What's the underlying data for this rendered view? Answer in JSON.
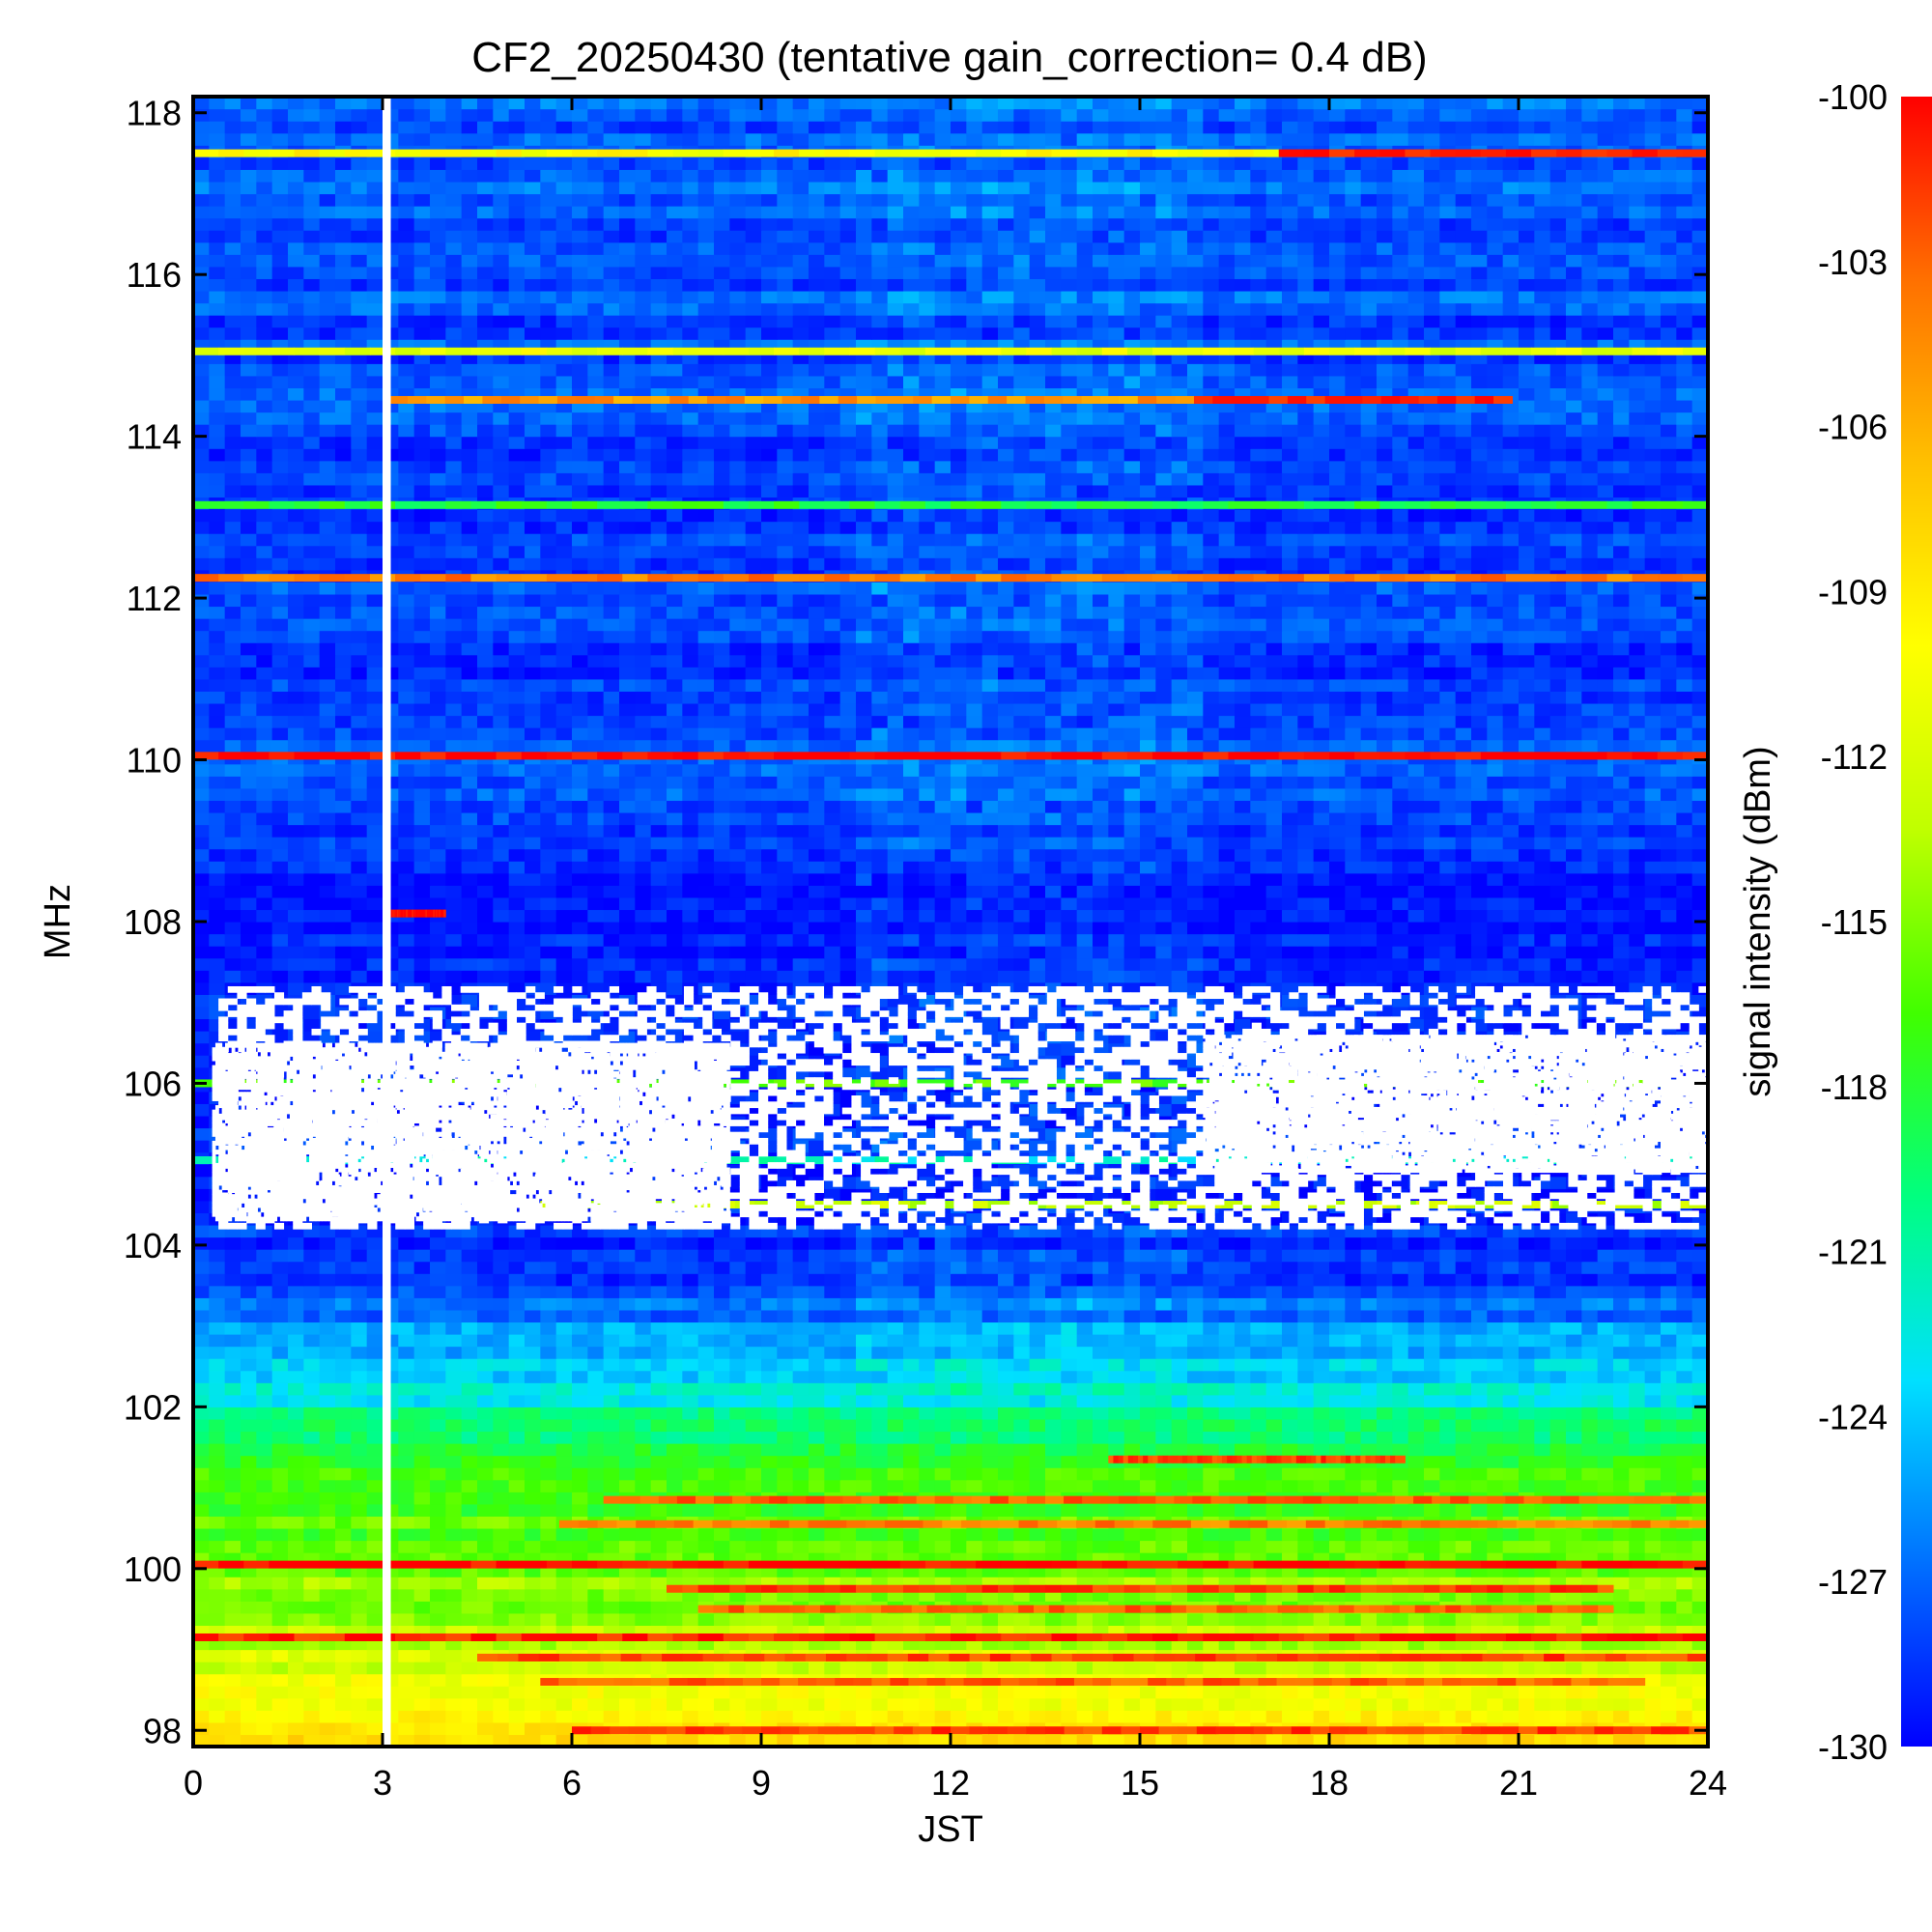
{
  "chart_data": {
    "type": "heatmap",
    "title": "CF2_20250430 (tentative gain_correction=  0.4 dB)",
    "xlabel": "JST",
    "ylabel": "MHz",
    "colorbar_label": "signal intensity (dBm)",
    "xlim": [
      0,
      24
    ],
    "ylim": [
      97.8,
      118.2
    ],
    "clim": [
      -130,
      -100
    ],
    "x_ticks": [
      0,
      3,
      6,
      9,
      12,
      15,
      18,
      21,
      24
    ],
    "x_tick_labels": [
      "0",
      "3",
      "6",
      "9",
      "12",
      "15",
      "18",
      "21",
      "24"
    ],
    "y_ticks": [
      98,
      100,
      102,
      104,
      106,
      108,
      110,
      112,
      114,
      116,
      118
    ],
    "y_tick_labels": [
      "98",
      "100",
      "102",
      "104",
      "106",
      "108",
      "110",
      "112",
      "114",
      "116",
      "118"
    ],
    "colorbar_ticks": [
      -100,
      -103,
      -106,
      -109,
      -112,
      -115,
      -118,
      -121,
      -124,
      -127,
      -130
    ],
    "colorbar_tick_labels": [
      "-100",
      "-103",
      "-106",
      "-109",
      "-112",
      "-115",
      "-118",
      "-121",
      "-124",
      "-127",
      "-130"
    ],
    "colormap": [
      "#0000ff",
      "#0070ff",
      "#00e0ff",
      "#00ff80",
      "#40ff00",
      "#c0ff00",
      "#ffff00",
      "#ffc000",
      "#ff7000",
      "#ff0000"
    ],
    "background_gradient": [
      {
        "freq": 97.8,
        "dbm": -109
      },
      {
        "freq": 98.5,
        "dbm": -111
      },
      {
        "freq": 99.3,
        "dbm": -114
      },
      {
        "freq": 100.5,
        "dbm": -116
      },
      {
        "freq": 101.5,
        "dbm": -118
      },
      {
        "freq": 102.2,
        "dbm": -123
      },
      {
        "freq": 103.0,
        "dbm": -126
      },
      {
        "freq": 104.0,
        "dbm": -129
      },
      {
        "freq": 108.0,
        "dbm": -129
      },
      {
        "freq": 110.0,
        "dbm": -128
      },
      {
        "freq": 114.0,
        "dbm": -128
      },
      {
        "freq": 118.2,
        "dbm": -127
      }
    ],
    "lines": [
      {
        "freq": 117.5,
        "t_start": 0,
        "t_end": 24,
        "dbm": -110,
        "peak_dbm": -101
      },
      {
        "freq": 115.05,
        "t_start": 0,
        "t_end": 24,
        "dbm": -111
      },
      {
        "freq": 114.45,
        "t_start": 3.1,
        "t_end": 20.9,
        "dbm": -105,
        "peak_dbm": -101
      },
      {
        "freq": 113.15,
        "t_start": 0,
        "t_end": 24,
        "dbm": -118
      },
      {
        "freq": 112.25,
        "t_start": 0,
        "t_end": 24,
        "dbm": -104
      },
      {
        "freq": 110.05,
        "t_start": 0,
        "t_end": 24,
        "dbm": -100
      },
      {
        "freq": 108.1,
        "t_start": 3.1,
        "t_end": 4.0,
        "dbm": -100
      },
      {
        "freq": 106.0,
        "t_start": 0,
        "t_end": 24,
        "dbm": -116
      },
      {
        "freq": 105.05,
        "t_start": 0,
        "t_end": 24,
        "dbm": -122
      },
      {
        "freq": 104.5,
        "t_start": 5.5,
        "t_end": 24,
        "dbm": -113
      },
      {
        "freq": 101.35,
        "t_start": 14.5,
        "t_end": 19.2,
        "dbm": -102
      },
      {
        "freq": 100.85,
        "t_start": 6.5,
        "t_end": 24,
        "dbm": -103
      },
      {
        "freq": 100.55,
        "t_start": 5.8,
        "t_end": 24,
        "dbm": -104
      },
      {
        "freq": 100.05,
        "t_start": 0,
        "t_end": 24,
        "dbm": -100
      },
      {
        "freq": 99.75,
        "t_start": 7.5,
        "t_end": 22.5,
        "dbm": -102
      },
      {
        "freq": 99.5,
        "t_start": 8.0,
        "t_end": 22.5,
        "dbm": -103
      },
      {
        "freq": 99.15,
        "t_start": 0,
        "t_end": 24,
        "dbm": -101
      },
      {
        "freq": 98.9,
        "t_start": 4.5,
        "t_end": 24,
        "dbm": -102
      },
      {
        "freq": 98.6,
        "t_start": 5.5,
        "t_end": 23.0,
        "dbm": -103
      },
      {
        "freq": 98.0,
        "t_start": 6.0,
        "t_end": 24,
        "dbm": -102
      }
    ],
    "blank_regions": [
      {
        "t_start": 0.4,
        "t_end": 24,
        "f_low": 104.2,
        "f_high": 107.2,
        "density": "sparse"
      },
      {
        "t_start": 0.3,
        "t_end": 8.5,
        "f_low": 104.3,
        "f_high": 106.5,
        "density": "mostly-blank"
      },
      {
        "t_start": 16.0,
        "t_end": 24,
        "f_low": 104.9,
        "f_high": 106.6,
        "density": "mostly-blank"
      }
    ],
    "data_gap": {
      "t_start": 3.0,
      "t_end": 3.1
    }
  }
}
